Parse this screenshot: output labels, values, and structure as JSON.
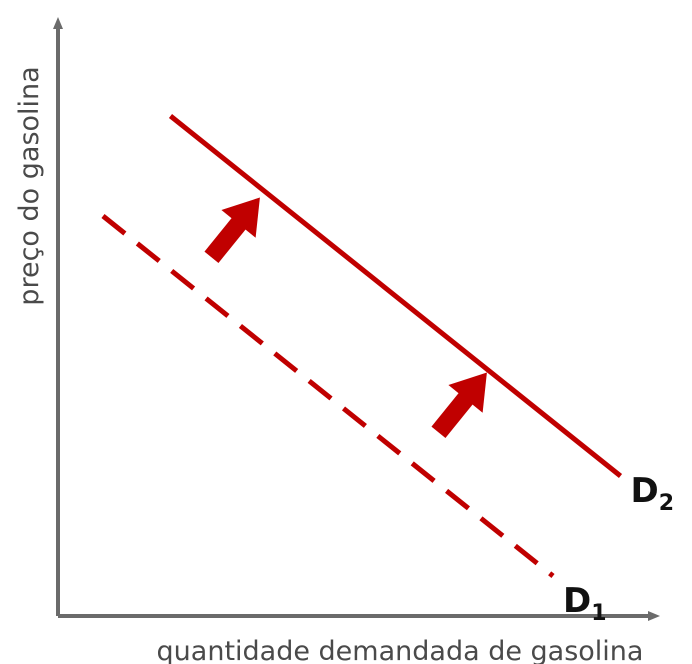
{
  "chart_data": {
    "type": "line",
    "xlabel": "quantidade demandada de gasolina",
    "ylabel": "preço do gasolina",
    "colors": {
      "curve": "#c00000",
      "arrow": "#c00000",
      "axis": "#6b6b6b",
      "label": "#111111"
    },
    "series": [
      {
        "key": "D1",
        "letter": "D",
        "subscript": "1",
        "style": "dashed",
        "x": [
          1,
          11
        ],
        "y": [
          10,
          1
        ]
      },
      {
        "key": "D2",
        "letter": "D",
        "subscript": "2",
        "style": "solid",
        "x": [
          2.5,
          12.5
        ],
        "y": [
          12.5,
          3.5
        ]
      }
    ],
    "shift_direction": "up-right",
    "shift_arrows": 2
  }
}
